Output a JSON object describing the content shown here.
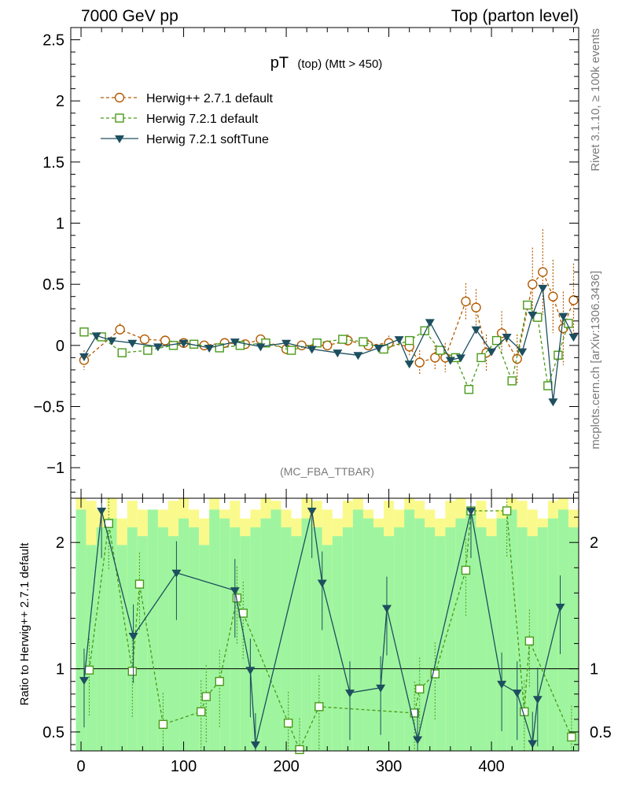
{
  "header": {
    "left": "7000 GeV pp",
    "right": "Top (parton level)"
  },
  "side_labels": {
    "rivet": "Rivet 3.1.10, ≥ 100k events",
    "mcplots": "mcplots.cern.ch [arXiv:1306.3436]"
  },
  "watermark": "(MC_FBA_TTBAR)",
  "colors": {
    "herwigpp": "#b35a00",
    "herwig72": "#4a9a1a",
    "softtune": "#1d4f5f",
    "band_inner": "#9ff59f",
    "band_outer": "#fafa8c"
  },
  "chart_data": [
    {
      "type": "scatter",
      "panel": "main",
      "title": "pT (top) (Mtt > 450)",
      "title_parts": {
        "main": "pT",
        "sub": "(top) (Mtt > 450)"
      },
      "xlim": [
        -10,
        485
      ],
      "ylim": [
        -1.25,
        2.6
      ],
      "yticks": [
        -1,
        -0.5,
        0,
        0.5,
        1,
        1.5,
        2,
        2.5
      ],
      "ytick_labels": [
        "−1",
        "−0.5",
        "0",
        "0.5",
        "1",
        "1.5",
        "2",
        "2.5"
      ],
      "legend_position": "top-left",
      "series": [
        {
          "name": "Herwig++ 2.7.1 default",
          "marker": "circle",
          "line": "dashed",
          "x": [
            3,
            38,
            62,
            82,
            100,
            120,
            140,
            160,
            175,
            200,
            215,
            240,
            260,
            280,
            300,
            320,
            330,
            345,
            355,
            375,
            385,
            395,
            410,
            425,
            440,
            450,
            460,
            470,
            480
          ],
          "y": [
            -0.12,
            0.13,
            0.05,
            0.04,
            0.02,
            0.0,
            0.02,
            0.01,
            0.05,
            -0.03,
            0.0,
            0.0,
            0.04,
            0.0,
            0.02,
            -0.01,
            -0.14,
            -0.1,
            -0.1,
            0.36,
            0.31,
            -0.06,
            0.1,
            -0.11,
            0.5,
            0.6,
            0.4,
            0.14,
            0.37
          ],
          "err": [
            0.08,
            0.05,
            0.04,
            0.04,
            0.03,
            0.03,
            0.03,
            0.03,
            0.03,
            0.03,
            0.03,
            0.04,
            0.05,
            0.05,
            0.06,
            0.07,
            0.1,
            0.1,
            0.12,
            0.15,
            0.15,
            0.15,
            0.18,
            0.2,
            0.3,
            0.35,
            0.3,
            0.3,
            0.3
          ]
        },
        {
          "name": "Herwig 7.2.1 default",
          "marker": "square",
          "line": "dashed",
          "x": [
            3,
            20,
            40,
            65,
            90,
            110,
            135,
            155,
            180,
            205,
            230,
            255,
            275,
            295,
            320,
            335,
            350,
            365,
            378,
            390,
            405,
            420,
            435,
            445,
            455,
            465,
            475
          ],
          "y": [
            0.11,
            0.07,
            -0.06,
            -0.04,
            0.0,
            0.01,
            -0.02,
            0.0,
            0.02,
            -0.04,
            0.02,
            0.05,
            0.03,
            -0.03,
            0.04,
            0.12,
            -0.04,
            -0.1,
            -0.36,
            -0.1,
            0.04,
            -0.29,
            0.33,
            0.23,
            -0.33,
            -0.08,
            0.18
          ]
        },
        {
          "name": "Herwig 7.2.1 softTune",
          "marker": "triangle-down",
          "line": "solid",
          "x": [
            3,
            15,
            30,
            50,
            75,
            100,
            125,
            150,
            175,
            200,
            225,
            250,
            270,
            290,
            310,
            320,
            340,
            360,
            370,
            385,
            400,
            415,
            430,
            440,
            450,
            460,
            470,
            480
          ],
          "y": [
            -0.09,
            0.08,
            0.04,
            0.02,
            -0.01,
            0.02,
            -0.02,
            0.03,
            -0.01,
            0.02,
            -0.03,
            -0.06,
            -0.08,
            -0.02,
            0.05,
            -0.15,
            0.19,
            -0.12,
            -0.1,
            0.13,
            -0.05,
            0.07,
            -0.05,
            0.25,
            0.47,
            -0.46,
            0.24,
            0.07
          ]
        }
      ]
    },
    {
      "type": "scatter",
      "panel": "ratio",
      "ylabel": "Ratio to Herwig++ 2.7.1 default",
      "xlim": [
        -10,
        485
      ],
      "ylim": [
        0.35,
        2.35
      ],
      "yticks": [
        0.5,
        1,
        2
      ],
      "ytick_labels": [
        "0.5",
        "1",
        "2"
      ],
      "xticks": [
        0,
        100,
        200,
        300,
        400
      ],
      "xtick_labels": [
        "0",
        "100",
        "200",
        "300",
        "400"
      ],
      "reference_line": 1,
      "band": {
        "x": [
          0,
          10,
          20,
          30,
          40,
          50,
          60,
          70,
          80,
          90,
          100,
          110,
          120,
          130,
          140,
          150,
          160,
          170,
          180,
          190,
          200,
          210,
          220,
          230,
          240,
          250,
          260,
          270,
          280,
          290,
          300,
          310,
          320,
          330,
          340,
          350,
          360,
          370,
          380,
          390,
          400,
          410,
          420,
          430,
          440,
          450,
          460,
          470,
          480
        ],
        "inner": [
          0.9,
          0.7,
          0.8,
          0.85,
          0.7,
          0.8,
          0.75,
          0.9,
          0.8,
          0.75,
          0.85,
          0.8,
          0.7,
          0.9,
          0.85,
          0.8,
          0.75,
          0.8,
          0.85,
          0.9,
          0.8,
          0.75,
          0.85,
          0.8,
          0.7,
          0.75,
          0.8,
          0.9,
          0.85,
          0.8,
          0.75,
          0.8,
          0.9,
          0.85,
          0.8,
          0.75,
          0.8,
          0.85,
          0.9,
          0.8,
          0.75,
          0.85,
          0.9,
          0.8,
          0.75,
          0.8,
          0.85,
          0.9,
          0.8
        ],
        "outer": [
          1.0,
          0.95,
          0.9,
          1.0,
          0.85,
          0.95,
          0.9,
          0.8,
          0.9,
          0.95,
          1.0,
          0.9,
          0.85,
          1.0,
          0.9,
          0.95,
          0.85,
          0.9,
          1.0,
          0.95,
          0.9,
          0.85,
          1.0,
          0.95,
          0.9,
          0.85,
          0.95,
          1.0,
          0.9,
          0.85,
          0.95,
          0.9,
          1.0,
          0.95,
          0.9,
          0.85,
          0.95,
          1.0,
          0.9,
          0.95,
          0.85,
          0.9,
          1.0,
          0.95,
          0.9,
          0.85,
          0.95,
          1.0,
          0.9
        ]
      },
      "series": [
        {
          "name": "Herwig 7.2.1 default",
          "marker": "square",
          "line": "dashed",
          "x": [
            8,
            27,
            50,
            57,
            80,
            117,
            122,
            135,
            152,
            158,
            202,
            213,
            232,
            325,
            330,
            345,
            375,
            380,
            415,
            432,
            437,
            478
          ],
          "y": [
            0.99,
            2.15,
            0.98,
            1.67,
            0.56,
            0.66,
            0.78,
            0.9,
            1.56,
            1.44,
            0.57,
            0.36,
            0.7,
            0.65,
            0.84,
            0.96,
            1.78,
            2.25,
            2.25,
            0.66,
            1.22,
            0.46
          ]
        },
        {
          "name": "Herwig 7.2.1 softTune",
          "marker": "triangle-down",
          "line": "solid",
          "x": [
            3,
            20,
            51,
            93,
            150,
            165,
            170,
            225,
            235,
            262,
            292,
            298,
            328,
            380,
            410,
            425,
            440,
            445,
            467
          ],
          "y": [
            0.91,
            2.25,
            1.26,
            1.76,
            1.62,
            0.99,
            0.4,
            2.25,
            1.68,
            0.81,
            0.85,
            1.48,
            0.44,
            2.25,
            0.88,
            0.81,
            0.41,
            0.76,
            1.49
          ]
        }
      ]
    }
  ]
}
